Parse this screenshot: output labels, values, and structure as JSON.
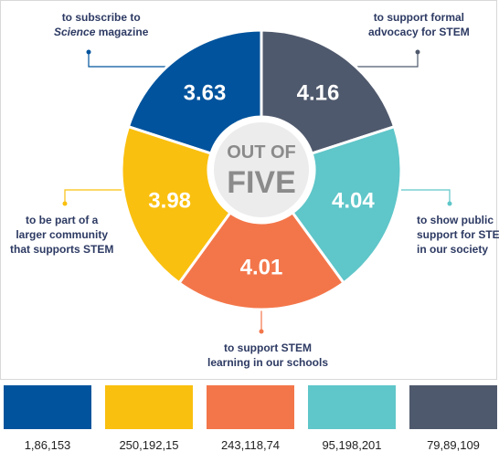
{
  "chart_data": {
    "type": "pie",
    "title": "",
    "center_label": {
      "line1": "OUT OF",
      "line2": "FIVE"
    },
    "scale_max": 5,
    "slices": [
      {
        "value": 3.63,
        "label_line1": "to subscribe to",
        "label_line2_italic": "Science",
        "label_line2_rest": " magazine",
        "color": "#01539d"
      },
      {
        "value": 4.16,
        "label_line1": "to support formal",
        "label_line2": "advocacy for STEM",
        "color": "#4f596d"
      },
      {
        "value": 4.04,
        "label_line1": "to show public",
        "label_line2": "support for STEM",
        "label_line3": "in our society",
        "color": "#5fc6c9"
      },
      {
        "value": 4.01,
        "label_line1": "to support STEM",
        "label_line2": "learning in our schools",
        "color": "#f3764a"
      },
      {
        "value": 3.98,
        "label_line1": "to be part of a",
        "label_line2": "larger community",
        "label_line3": "that supports STEM",
        "color": "#fac00f"
      }
    ]
  },
  "legend": [
    {
      "color": "#01539d",
      "label": "1,86,153"
    },
    {
      "color": "#fac00f",
      "label": "250,192,15"
    },
    {
      "color": "#f3764a",
      "label": "243,118,74"
    },
    {
      "color": "#5fc6c9",
      "label": "95,198,201"
    },
    {
      "color": "#4f596d",
      "label": "79,89,109"
    }
  ]
}
